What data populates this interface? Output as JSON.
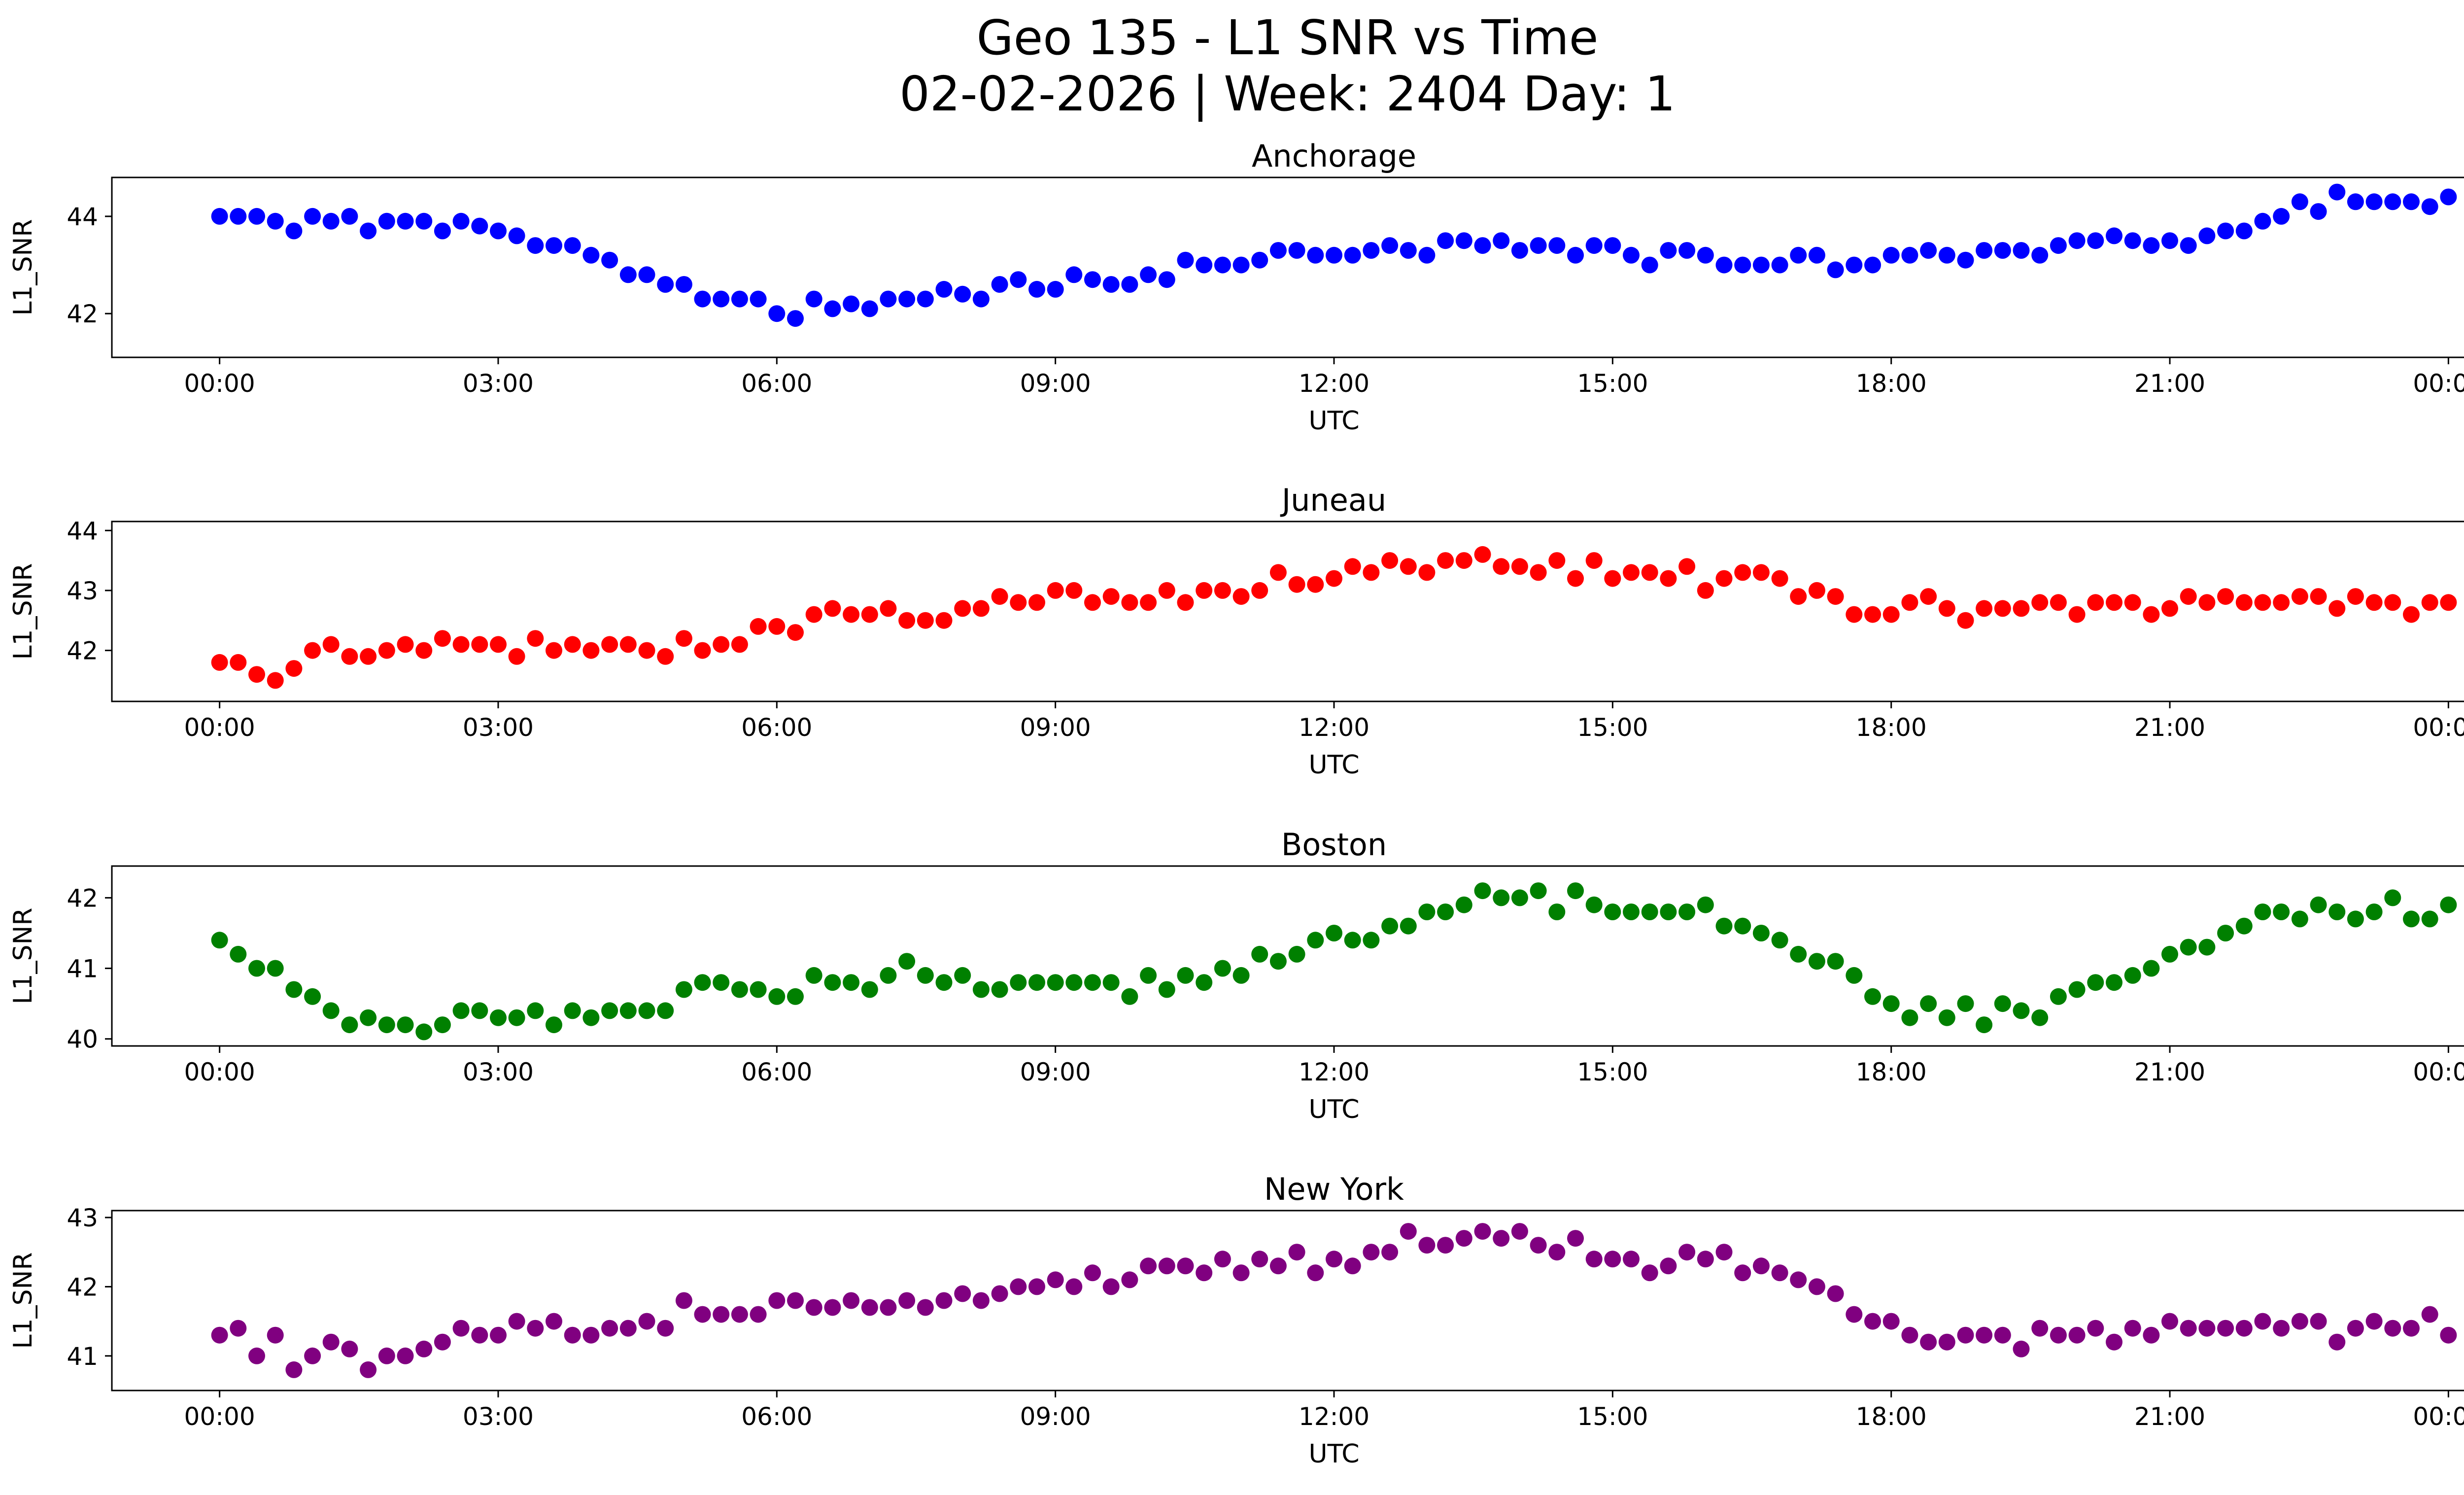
{
  "figure": {
    "title_line1": "Geo 135 - L1 SNR vs Time",
    "title_line2": "02-02-2026 | Week: 2404 Day: 1"
  },
  "chart_data": [
    {
      "type": "scatter",
      "title": "Anchorage",
      "xlabel": "UTC",
      "ylabel": "L1_SNR",
      "color": "#0000ff",
      "xlim_hours": [
        -1.16,
        25.16
      ],
      "ylim": [
        41.1,
        44.8
      ],
      "yticks": [
        42,
        44
      ],
      "xticks": [
        "00:00",
        "03:00",
        "06:00",
        "09:00",
        "12:00",
        "15:00",
        "18:00",
        "21:00",
        "00:00"
      ],
      "x_hours": [
        0.0,
        0.2,
        0.4,
        0.6,
        0.8,
        1.0,
        1.2,
        1.4,
        1.6,
        1.8,
        2.0,
        2.2,
        2.4,
        2.6,
        2.8,
        3.0,
        3.2,
        3.4,
        3.6,
        3.8,
        4.0,
        4.2,
        4.4,
        4.6,
        4.8,
        5.0,
        5.2,
        5.4,
        5.6,
        5.8,
        6.0,
        6.2,
        6.4,
        6.6,
        6.8,
        7.0,
        7.2,
        7.4,
        7.6,
        7.8,
        8.0,
        8.2,
        8.4,
        8.6,
        8.8,
        9.0,
        9.2,
        9.4,
        9.6,
        9.8,
        10.0,
        10.2,
        10.4,
        10.6,
        10.8,
        11.0,
        11.2,
        11.4,
        11.6,
        11.8,
        12.0,
        12.2,
        12.4,
        12.6,
        12.8,
        13.0,
        13.2,
        13.4,
        13.6,
        13.8,
        14.0,
        14.2,
        14.4,
        14.6,
        14.8,
        15.0,
        15.2,
        15.4,
        15.6,
        15.8,
        16.0,
        16.2,
        16.4,
        16.6,
        16.8,
        17.0,
        17.2,
        17.4,
        17.6,
        17.8,
        18.0,
        18.2,
        18.4,
        18.6,
        18.8,
        19.0,
        19.2,
        19.4,
        19.6,
        19.8,
        20.0,
        20.2,
        20.4,
        20.6,
        20.8,
        21.0,
        21.2,
        21.4,
        21.6,
        21.8,
        22.0,
        22.2,
        22.4,
        22.6,
        22.8,
        23.0,
        23.2,
        23.4,
        23.6,
        23.8,
        24.0
      ],
      "values": [
        44.0,
        44.0,
        44.0,
        43.9,
        43.7,
        44.0,
        43.9,
        44.0,
        43.7,
        43.9,
        43.9,
        43.9,
        43.7,
        43.9,
        43.8,
        43.7,
        43.6,
        43.4,
        43.4,
        43.4,
        43.2,
        43.1,
        42.8,
        42.8,
        42.6,
        42.6,
        42.3,
        42.3,
        42.3,
        42.3,
        42.0,
        41.9,
        42.3,
        42.1,
        42.2,
        42.1,
        42.3,
        42.3,
        42.3,
        42.5,
        42.4,
        42.3,
        42.6,
        42.7,
        42.5,
        42.5,
        42.8,
        42.7,
        42.6,
        42.6,
        42.8,
        42.7,
        43.1,
        43.0,
        43.0,
        43.0,
        43.1,
        43.3,
        43.3,
        43.2,
        43.2,
        43.2,
        43.3,
        43.4,
        43.3,
        43.2,
        43.5,
        43.5,
        43.4,
        43.5,
        43.3,
        43.4,
        43.4,
        43.2,
        43.4,
        43.4,
        43.2,
        43.0,
        43.3,
        43.3,
        43.2,
        43.0,
        43.0,
        43.0,
        43.0,
        43.2,
        43.2,
        42.9,
        43.0,
        43.0,
        43.2,
        43.2,
        43.3,
        43.2,
        43.1,
        43.3,
        43.3,
        43.3,
        43.2,
        43.4,
        43.5,
        43.5,
        43.6,
        43.5,
        43.4,
        43.5,
        43.4,
        43.6,
        43.7,
        43.7,
        43.9,
        44.0,
        44.3,
        44.1,
        44.5,
        44.3,
        44.3,
        44.3,
        44.3,
        44.2,
        44.4
      ]
    },
    {
      "type": "scatter",
      "title": "Juneau",
      "xlabel": "UTC",
      "ylabel": "L1_SNR",
      "color": "#ff0000",
      "xlim_hours": [
        -1.16,
        25.16
      ],
      "ylim": [
        41.15,
        44.15
      ],
      "yticks": [
        42,
        43,
        44
      ],
      "xticks": [
        "00:00",
        "03:00",
        "06:00",
        "09:00",
        "12:00",
        "15:00",
        "18:00",
        "21:00",
        "00:00"
      ],
      "x_hours": [
        0.0,
        0.2,
        0.4,
        0.6,
        0.8,
        1.0,
        1.2,
        1.4,
        1.6,
        1.8,
        2.0,
        2.2,
        2.4,
        2.6,
        2.8,
        3.0,
        3.2,
        3.4,
        3.6,
        3.8,
        4.0,
        4.2,
        4.4,
        4.6,
        4.8,
        5.0,
        5.2,
        5.4,
        5.6,
        5.8,
        6.0,
        6.2,
        6.4,
        6.6,
        6.8,
        7.0,
        7.2,
        7.4,
        7.6,
        7.8,
        8.0,
        8.2,
        8.4,
        8.6,
        8.8,
        9.0,
        9.2,
        9.4,
        9.6,
        9.8,
        10.0,
        10.2,
        10.4,
        10.6,
        10.8,
        11.0,
        11.2,
        11.4,
        11.6,
        11.8,
        12.0,
        12.2,
        12.4,
        12.6,
        12.8,
        13.0,
        13.2,
        13.4,
        13.6,
        13.8,
        14.0,
        14.2,
        14.4,
        14.6,
        14.8,
        15.0,
        15.2,
        15.4,
        15.6,
        15.8,
        16.0,
        16.2,
        16.4,
        16.6,
        16.8,
        17.0,
        17.2,
        17.4,
        17.6,
        17.8,
        18.0,
        18.2,
        18.4,
        18.6,
        18.8,
        19.0,
        19.2,
        19.4,
        19.6,
        19.8,
        20.0,
        20.2,
        20.4,
        20.6,
        20.8,
        21.0,
        21.2,
        21.4,
        21.6,
        21.8,
        22.0,
        22.2,
        22.4,
        22.6,
        22.8,
        23.0,
        23.2,
        23.4,
        23.6,
        23.8,
        24.0
      ],
      "values": [
        41.8,
        41.8,
        41.6,
        41.5,
        41.7,
        42.0,
        42.1,
        41.9,
        41.9,
        42.0,
        42.1,
        42.0,
        42.2,
        42.1,
        42.1,
        42.1,
        41.9,
        42.2,
        42.0,
        42.1,
        42.0,
        42.1,
        42.1,
        42.0,
        41.9,
        42.2,
        42.0,
        42.1,
        42.1,
        42.4,
        42.4,
        42.3,
        42.6,
        42.7,
        42.6,
        42.6,
        42.7,
        42.5,
        42.5,
        42.5,
        42.7,
        42.7,
        42.9,
        42.8,
        42.8,
        43.0,
        43.0,
        42.8,
        42.9,
        42.8,
        42.8,
        43.0,
        42.8,
        43.0,
        43.0,
        42.9,
        43.0,
        43.3,
        43.1,
        43.1,
        43.2,
        43.4,
        43.3,
        43.5,
        43.4,
        43.3,
        43.5,
        43.5,
        43.6,
        43.4,
        43.4,
        43.3,
        43.5,
        43.2,
        43.5,
        43.2,
        43.3,
        43.3,
        43.2,
        43.4,
        43.0,
        43.2,
        43.3,
        43.3,
        43.2,
        42.9,
        43.0,
        42.9,
        42.6,
        42.6,
        42.6,
        42.8,
        42.9,
        42.7,
        42.5,
        42.7,
        42.7,
        42.7,
        42.8,
        42.8,
        42.6,
        42.8,
        42.8,
        42.8,
        42.6,
        42.7,
        42.9,
        42.8,
        42.9,
        42.8,
        42.8,
        42.8,
        42.9,
        42.9,
        42.7,
        42.9,
        42.8,
        42.8,
        42.6,
        42.8,
        42.8
      ]
    },
    {
      "type": "scatter",
      "title": "Boston",
      "xlabel": "UTC",
      "ylabel": "L1_SNR",
      "color": "#008000",
      "xlim_hours": [
        -1.16,
        25.16
      ],
      "ylim": [
        39.9,
        42.45
      ],
      "yticks": [
        40,
        41,
        42
      ],
      "xticks": [
        "00:00",
        "03:00",
        "06:00",
        "09:00",
        "12:00",
        "15:00",
        "18:00",
        "21:00",
        "00:00"
      ],
      "x_hours": [
        0.0,
        0.2,
        0.4,
        0.6,
        0.8,
        1.0,
        1.2,
        1.4,
        1.6,
        1.8,
        2.0,
        2.2,
        2.4,
        2.6,
        2.8,
        3.0,
        3.2,
        3.4,
        3.6,
        3.8,
        4.0,
        4.2,
        4.4,
        4.6,
        4.8,
        5.0,
        5.2,
        5.4,
        5.6,
        5.8,
        6.0,
        6.2,
        6.4,
        6.6,
        6.8,
        7.0,
        7.2,
        7.4,
        7.6,
        7.8,
        8.0,
        8.2,
        8.4,
        8.6,
        8.8,
        9.0,
        9.2,
        9.4,
        9.6,
        9.8,
        10.0,
        10.2,
        10.4,
        10.6,
        10.8,
        11.0,
        11.2,
        11.4,
        11.6,
        11.8,
        12.0,
        12.2,
        12.4,
        12.6,
        12.8,
        13.0,
        13.2,
        13.4,
        13.6,
        13.8,
        14.0,
        14.2,
        14.4,
        14.6,
        14.8,
        15.0,
        15.2,
        15.4,
        15.6,
        15.8,
        16.0,
        16.2,
        16.4,
        16.6,
        16.8,
        17.0,
        17.2,
        17.4,
        17.6,
        17.8,
        18.0,
        18.2,
        18.4,
        18.6,
        18.8,
        19.0,
        19.2,
        19.4,
        19.6,
        19.8,
        20.0,
        20.2,
        20.4,
        20.6,
        20.8,
        21.0,
        21.2,
        21.4,
        21.6,
        21.8,
        22.0,
        22.2,
        22.4,
        22.6,
        22.8,
        23.0,
        23.2,
        23.4,
        23.6,
        23.8,
        24.0
      ],
      "values": [
        41.4,
        41.2,
        41.0,
        41.0,
        40.7,
        40.6,
        40.4,
        40.2,
        40.3,
        40.2,
        40.2,
        40.1,
        40.2,
        40.4,
        40.4,
        40.3,
        40.3,
        40.4,
        40.2,
        40.4,
        40.3,
        40.4,
        40.4,
        40.4,
        40.4,
        40.7,
        40.8,
        40.8,
        40.7,
        40.7,
        40.6,
        40.6,
        40.9,
        40.8,
        40.8,
        40.7,
        40.9,
        41.1,
        40.9,
        40.8,
        40.9,
        40.7,
        40.7,
        40.8,
        40.8,
        40.8,
        40.8,
        40.8,
        40.8,
        40.6,
        40.9,
        40.7,
        40.9,
        40.8,
        41.0,
        40.9,
        41.2,
        41.1,
        41.2,
        41.4,
        41.5,
        41.4,
        41.4,
        41.6,
        41.6,
        41.8,
        41.8,
        41.9,
        42.1,
        42.0,
        42.0,
        42.1,
        41.8,
        42.1,
        41.9,
        41.8,
        41.8,
        41.8,
        41.8,
        41.8,
        41.9,
        41.6,
        41.6,
        41.5,
        41.4,
        41.2,
        41.1,
        41.1,
        40.9,
        40.6,
        40.5,
        40.3,
        40.5,
        40.3,
        40.5,
        40.2,
        40.5,
        40.4,
        40.3,
        40.6,
        40.7,
        40.8,
        40.8,
        40.9,
        41.0,
        41.2,
        41.3,
        41.3,
        41.5,
        41.6,
        41.8,
        41.8,
        41.7,
        41.9,
        41.8,
        41.7,
        41.8,
        42.0,
        41.7,
        41.7,
        41.9
      ]
    },
    {
      "type": "scatter",
      "title": "New York",
      "xlabel": "UTC",
      "ylabel": "L1_SNR",
      "color": "#800080",
      "xlim_hours": [
        -1.16,
        25.16
      ],
      "ylim": [
        40.5,
        43.1
      ],
      "yticks": [
        41,
        42,
        43
      ],
      "xticks": [
        "00:00",
        "03:00",
        "06:00",
        "09:00",
        "12:00",
        "15:00",
        "18:00",
        "21:00",
        "00:00"
      ],
      "x_hours": [
        0.0,
        0.2,
        0.4,
        0.6,
        0.8,
        1.0,
        1.2,
        1.4,
        1.6,
        1.8,
        2.0,
        2.2,
        2.4,
        2.6,
        2.8,
        3.0,
        3.2,
        3.4,
        3.6,
        3.8,
        4.0,
        4.2,
        4.4,
        4.6,
        4.8,
        5.0,
        5.2,
        5.4,
        5.6,
        5.8,
        6.0,
        6.2,
        6.4,
        6.6,
        6.8,
        7.0,
        7.2,
        7.4,
        7.6,
        7.8,
        8.0,
        8.2,
        8.4,
        8.6,
        8.8,
        9.0,
        9.2,
        9.4,
        9.6,
        9.8,
        10.0,
        10.2,
        10.4,
        10.6,
        10.8,
        11.0,
        11.2,
        11.4,
        11.6,
        11.8,
        12.0,
        12.2,
        12.4,
        12.6,
        12.8,
        13.0,
        13.2,
        13.4,
        13.6,
        13.8,
        14.0,
        14.2,
        14.4,
        14.6,
        14.8,
        15.0,
        15.2,
        15.4,
        15.6,
        15.8,
        16.0,
        16.2,
        16.4,
        16.6,
        16.8,
        17.0,
        17.2,
        17.4,
        17.6,
        17.8,
        18.0,
        18.2,
        18.4,
        18.6,
        18.8,
        19.0,
        19.2,
        19.4,
        19.6,
        19.8,
        20.0,
        20.2,
        20.4,
        20.6,
        20.8,
        21.0,
        21.2,
        21.4,
        21.6,
        21.8,
        22.0,
        22.2,
        22.4,
        22.6,
        22.8,
        23.0,
        23.2,
        23.4,
        23.6,
        23.8,
        24.0
      ],
      "values": [
        41.3,
        41.4,
        41.0,
        41.3,
        40.8,
        41.0,
        41.2,
        41.1,
        40.8,
        41.0,
        41.0,
        41.1,
        41.2,
        41.4,
        41.3,
        41.3,
        41.5,
        41.4,
        41.5,
        41.3,
        41.3,
        41.4,
        41.4,
        41.5,
        41.4,
        41.8,
        41.6,
        41.6,
        41.6,
        41.6,
        41.8,
        41.8,
        41.7,
        41.7,
        41.8,
        41.7,
        41.7,
        41.8,
        41.7,
        41.8,
        41.9,
        41.8,
        41.9,
        42.0,
        42.0,
        42.1,
        42.0,
        42.2,
        42.0,
        42.1,
        42.3,
        42.3,
        42.3,
        42.2,
        42.4,
        42.2,
        42.4,
        42.3,
        42.5,
        42.2,
        42.4,
        42.3,
        42.5,
        42.5,
        42.8,
        42.6,
        42.6,
        42.7,
        42.8,
        42.7,
        42.8,
        42.6,
        42.5,
        42.7,
        42.4,
        42.4,
        42.4,
        42.2,
        42.3,
        42.5,
        42.4,
        42.5,
        42.2,
        42.3,
        42.2,
        42.1,
        42.0,
        41.9,
        41.6,
        41.5,
        41.5,
        41.3,
        41.2,
        41.2,
        41.3,
        41.3,
        41.3,
        41.1,
        41.4,
        41.3,
        41.3,
        41.4,
        41.2,
        41.4,
        41.3,
        41.5,
        41.4,
        41.4,
        41.4,
        41.4,
        41.5,
        41.4,
        41.5,
        41.5,
        41.2,
        41.4,
        41.5,
        41.4,
        41.4,
        41.6,
        41.3
      ]
    }
  ]
}
